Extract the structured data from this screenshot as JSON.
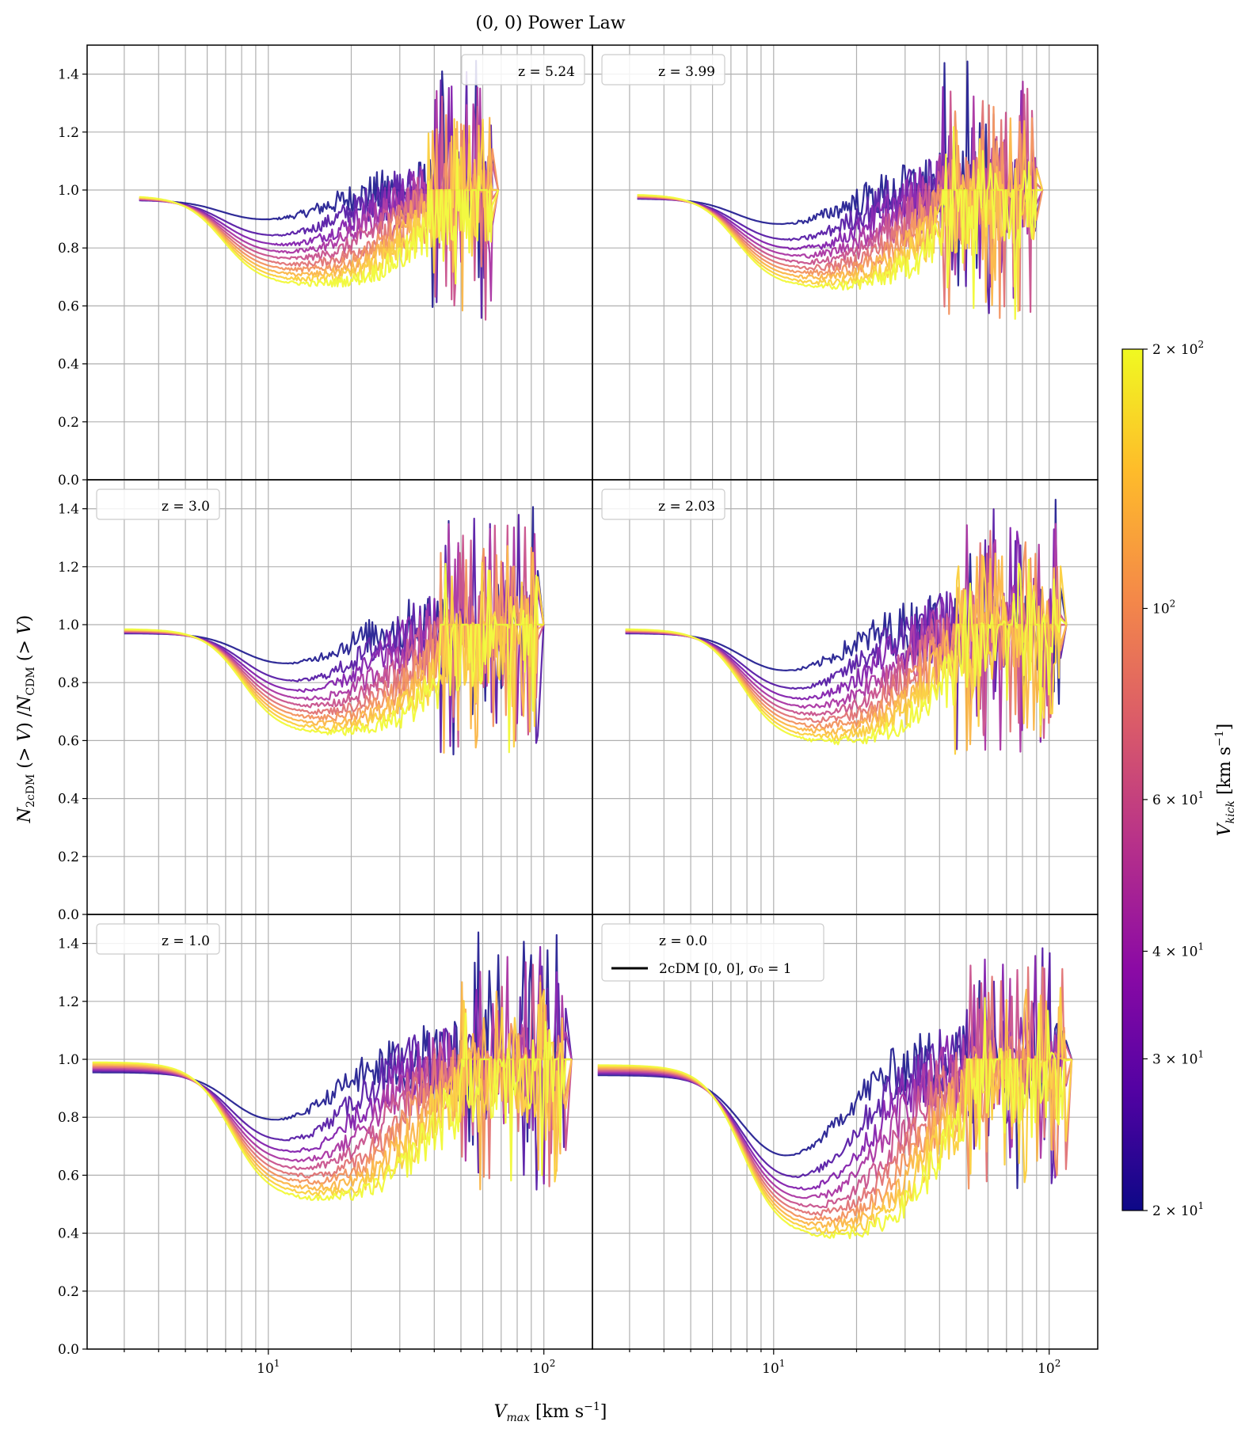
{
  "chart_data": {
    "type": "line",
    "title": "(0, 0) Power Law",
    "xlabel": "V_max [km s^-1]",
    "ylabel": "N_2cDM (> V) / N_CDM (> V)",
    "xscale": "log",
    "xlim": [
      2.2,
      150
    ],
    "ylim": [
      0.0,
      1.5
    ],
    "yticks": [
      0.0,
      0.2,
      0.4,
      0.6,
      0.8,
      1.0,
      1.2,
      1.4
    ],
    "ytick_labels": [
      "0.0",
      "0.2",
      "0.4",
      "0.6",
      "0.8",
      "1.0",
      "1.2",
      "1.4"
    ],
    "xtick_labels": [
      {
        "value": 10,
        "base": "10",
        "exp": "1"
      },
      {
        "value": 100,
        "base": "10",
        "exp": "2"
      }
    ],
    "grid": true,
    "colorbar": {
      "label": "V_kick [km s^-1]",
      "scale": "log",
      "range": [
        20,
        200
      ],
      "colormap": [
        "#0d0887",
        "#5302a3",
        "#8b0aa5",
        "#b83289",
        "#db5c68",
        "#f48849",
        "#febc2a",
        "#f0f921"
      ],
      "ticks": [
        {
          "value": 20,
          "label": "2 × 10",
          "exp": "1"
        },
        {
          "value": 30,
          "label": "3 × 10",
          "exp": "1"
        },
        {
          "value": 40,
          "label": "4 × 10",
          "exp": "1"
        },
        {
          "value": 60,
          "label": "6 × 10",
          "exp": "1"
        },
        {
          "value": 100,
          "label": "10",
          "exp": "2"
        },
        {
          "value": 200,
          "label": "2 × 10",
          "exp": "2"
        }
      ]
    },
    "vkick_values": [
      20,
      26,
      34,
      45,
      59,
      78,
      101,
      132,
      155,
      200
    ],
    "panels": [
      {
        "redshift_label": "z = 5.24",
        "legend_pos": "top-right",
        "start": 3.4,
        "plateau": 0.98,
        "dip_center": 9.8,
        "dip_width": 1.1,
        "min_low": 0.88,
        "min_high": 0.67,
        "tail_start": 38,
        "tail_end": 65,
        "noise": 0.035
      },
      {
        "redshift_label": "z = 3.99",
        "legend_pos": "top-left",
        "start": 3.2,
        "plateau": 0.985,
        "dip_center": 10.5,
        "dip_width": 1.1,
        "min_low": 0.86,
        "min_high": 0.66,
        "tail_start": 40,
        "tail_end": 90,
        "noise": 0.04
      },
      {
        "redshift_label": "z = 3.0",
        "legend_pos": "top-left",
        "start": 3.0,
        "plateau": 0.985,
        "dip_center": 11.5,
        "dip_width": 1.15,
        "min_low": 0.84,
        "min_high": 0.62,
        "tail_start": 42,
        "tail_end": 95,
        "noise": 0.04
      },
      {
        "redshift_label": "z = 2.03",
        "legend_pos": "top-left",
        "start": 2.9,
        "plateau": 0.985,
        "dip_center": 11.0,
        "dip_width": 1.15,
        "min_low": 0.81,
        "min_high": 0.59,
        "tail_start": 45,
        "tail_end": 110,
        "noise": 0.04
      },
      {
        "redshift_label": "z = 1.0",
        "legend_pos": "top-left",
        "start": 2.3,
        "plateau": 0.97,
        "dip_center": 10.5,
        "dip_width": 1.2,
        "min_low": 0.75,
        "min_high": 0.51,
        "tail_start": 50,
        "tail_end": 120,
        "noise": 0.04
      },
      {
        "redshift_label": "z = 0.0",
        "legend_pos": "top-left",
        "start": 2.3,
        "plateau": 0.96,
        "dip_center": 11.0,
        "dip_width": 1.0,
        "min_low": 0.6,
        "min_high": 0.38,
        "tail_start": 50,
        "tail_end": 115,
        "noise": 0.04,
        "extra_legend": "2cDM [0, 0], σ₀ = 1"
      }
    ]
  }
}
